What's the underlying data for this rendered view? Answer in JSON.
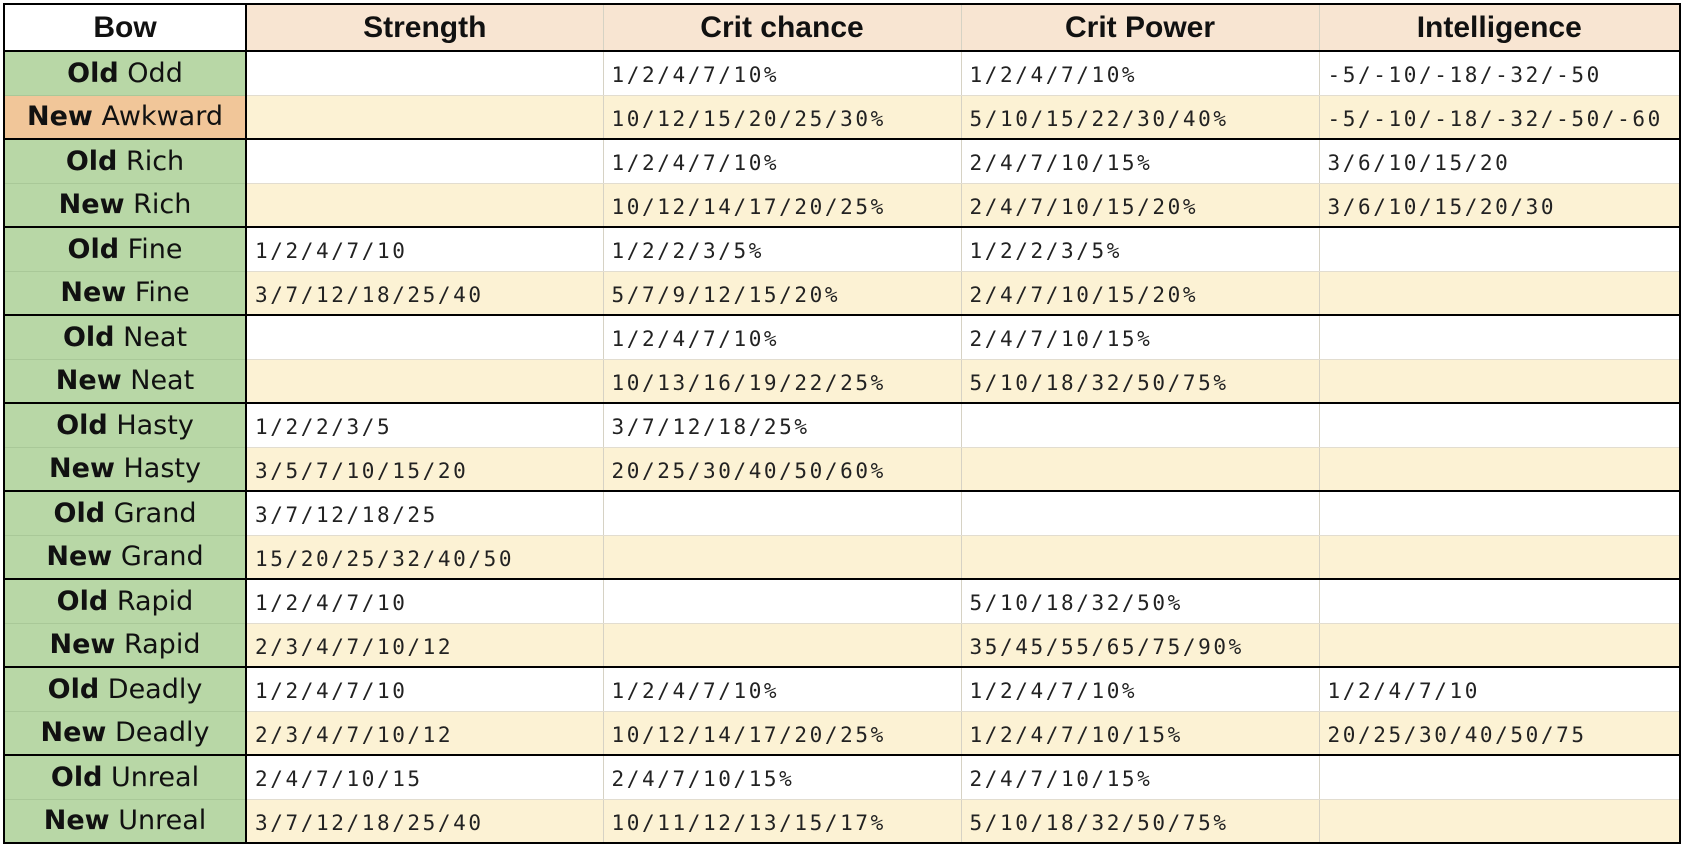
{
  "table": {
    "headers": [
      "Bow",
      "Strength",
      "Crit chance",
      "Crit Power",
      "Intelligence"
    ],
    "rows": [
      {
        "tag": "Old",
        "name": "Odd",
        "highlight": false,
        "strength": "",
        "crit_chance": "1/2/4/7/10%",
        "crit_power": "1/2/4/7/10%",
        "intelligence": "-5/-10/-18/-32/-50"
      },
      {
        "tag": "New",
        "name": "Awkward",
        "highlight": true,
        "strength": "",
        "crit_chance": "10/12/15/20/25/30%",
        "crit_power": "5/10/15/22/30/40%",
        "intelligence": "-5/-10/-18/-32/-50/-60"
      },
      {
        "tag": "Old",
        "name": "Rich",
        "highlight": false,
        "strength": "",
        "crit_chance": "1/2/4/7/10%",
        "crit_power": "2/4/7/10/15%",
        "intelligence": "3/6/10/15/20"
      },
      {
        "tag": "New",
        "name": "Rich",
        "highlight": false,
        "strength": "",
        "crit_chance": "10/12/14/17/20/25%",
        "crit_power": "2/4/7/10/15/20%",
        "intelligence": "3/6/10/15/20/30"
      },
      {
        "tag": "Old",
        "name": "Fine",
        "highlight": false,
        "strength": "1/2/4/7/10",
        "crit_chance": "1/2/2/3/5%",
        "crit_power": "1/2/2/3/5%",
        "intelligence": ""
      },
      {
        "tag": "New",
        "name": "Fine",
        "highlight": false,
        "strength": "3/7/12/18/25/40",
        "crit_chance": "5/7/9/12/15/20%",
        "crit_power": "2/4/7/10/15/20%",
        "intelligence": ""
      },
      {
        "tag": "Old",
        "name": "Neat",
        "highlight": false,
        "strength": "",
        "crit_chance": "1/2/4/7/10%",
        "crit_power": "2/4/7/10/15%",
        "intelligence": ""
      },
      {
        "tag": "New",
        "name": "Neat",
        "highlight": false,
        "strength": "",
        "crit_chance": "10/13/16/19/22/25%",
        "crit_power": "5/10/18/32/50/75%",
        "intelligence": ""
      },
      {
        "tag": "Old",
        "name": "Hasty",
        "highlight": false,
        "strength": "1/2/2/3/5",
        "crit_chance": "3/7/12/18/25%",
        "crit_power": "",
        "intelligence": ""
      },
      {
        "tag": "New",
        "name": "Hasty",
        "highlight": false,
        "strength": "3/5/7/10/15/20",
        "crit_chance": "20/25/30/40/50/60%",
        "crit_power": "",
        "intelligence": ""
      },
      {
        "tag": "Old",
        "name": "Grand",
        "highlight": false,
        "strength": "3/7/12/18/25",
        "crit_chance": "",
        "crit_power": "",
        "intelligence": ""
      },
      {
        "tag": "New",
        "name": "Grand",
        "highlight": false,
        "strength": "15/20/25/32/40/50",
        "crit_chance": "",
        "crit_power": "",
        "intelligence": ""
      },
      {
        "tag": "Old",
        "name": "Rapid",
        "highlight": false,
        "strength": "1/2/4/7/10",
        "crit_chance": "",
        "crit_power": "5/10/18/32/50%",
        "intelligence": ""
      },
      {
        "tag": "New",
        "name": "Rapid",
        "highlight": false,
        "strength": "2/3/4/7/10/12",
        "crit_chance": "",
        "crit_power": "35/45/55/65/75/90%",
        "intelligence": ""
      },
      {
        "tag": "Old",
        "name": "Deadly",
        "highlight": false,
        "strength": "1/2/4/7/10",
        "crit_chance": "1/2/4/7/10%",
        "crit_power": "1/2/4/7/10%",
        "intelligence": "1/2/4/7/10"
      },
      {
        "tag": "New",
        "name": "Deadly",
        "highlight": false,
        "strength": "2/3/4/7/10/12",
        "crit_chance": "10/12/14/17/20/25%",
        "crit_power": "1/2/4/7/10/15%",
        "intelligence": "20/25/30/40/50/75"
      },
      {
        "tag": "Old",
        "name": "Unreal",
        "highlight": false,
        "strength": "2/4/7/10/15",
        "crit_chance": "2/4/7/10/15%",
        "crit_power": "2/4/7/10/15%",
        "intelligence": ""
      },
      {
        "tag": "New",
        "name": "Unreal",
        "highlight": false,
        "strength": "3/7/12/18/25/40",
        "crit_chance": "10/11/12/13/15/17%",
        "crit_power": "5/10/18/32/50/75%",
        "intelligence": ""
      }
    ]
  },
  "colors": {
    "header_fill": "#f8e5d2",
    "bow_fill": "#b8d7a6",
    "highlight_fill": "#f1c699",
    "new_row_fill": "#fcf2d4",
    "old_row_fill": "#ffffff",
    "grid_border": "#000000"
  }
}
